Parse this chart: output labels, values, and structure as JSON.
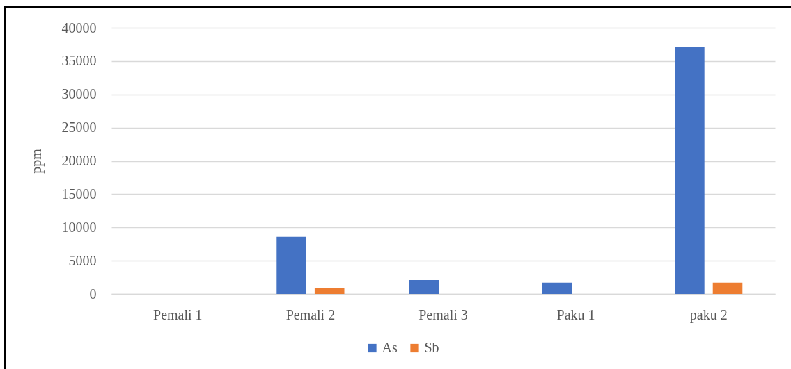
{
  "chart_data": {
    "type": "bar",
    "ylabel": "ppm",
    "categories": [
      "Pemali 1",
      "Pemali 2",
      "Pemali 3",
      "Paku 1",
      "paku 2"
    ],
    "series": [
      {
        "name": "As",
        "color": "#4472c4",
        "values": [
          0,
          8600,
          2100,
          1700,
          37100
        ]
      },
      {
        "name": "Sb",
        "color": "#ed7d31",
        "values": [
          0,
          900,
          0,
          0,
          1700
        ]
      }
    ],
    "ylim": [
      0,
      40000
    ],
    "yticks": [
      0,
      5000,
      10000,
      15000,
      20000,
      25000,
      30000,
      35000,
      40000
    ],
    "grid": "y",
    "legend": "bottom"
  }
}
